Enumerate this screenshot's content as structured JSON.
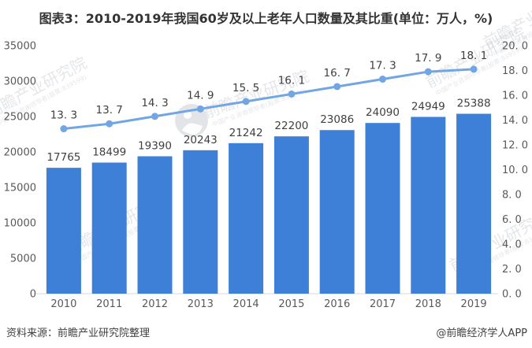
{
  "title": "图表3：2010-2019年我国60岁及以上老年人口数量及其比重(单位：万人，%)",
  "footer": {
    "source": "资料来源：前瞻产业研究院整理",
    "brand": "@前瞻经济学人APP"
  },
  "watermark": {
    "text": "前瞻产业研究院",
    "subtext": "中国产业咨询领导者(股票:839599)"
  },
  "colors": {
    "bar": "#3e80d8",
    "line": "#72a6e3",
    "marker": "#72a6e3",
    "axis_text": "#595959",
    "label_text": "#404040",
    "baseline": "#d9d9d9",
    "title_text": "#333333",
    "watermark": "#c5cad2"
  },
  "chart_data": {
    "type": "bar+line",
    "title": "图表3：2010-2019年我国60岁及以上老年人口数量及其比重(单位：万人，%)",
    "categories": [
      "2010",
      "2011",
      "2012",
      "2013",
      "2014",
      "2015",
      "2016",
      "2017",
      "2018",
      "2019"
    ],
    "bar_series": {
      "axis": "left",
      "unit": "万人",
      "values": [
        17765,
        18499,
        19390,
        20243,
        21242,
        22200,
        23086,
        24090,
        24949,
        25388
      ],
      "labels": [
        "17765",
        "18499",
        "19390",
        "20243",
        "21242",
        "22200",
        "23086",
        "24090",
        "24949",
        "25388"
      ]
    },
    "line_series": {
      "axis": "right",
      "unit": "%",
      "values": [
        13.3,
        13.7,
        14.3,
        14.9,
        15.5,
        16.1,
        16.7,
        17.3,
        17.9,
        18.1
      ],
      "labels": [
        "13. 3",
        "13. 7",
        "14. 3",
        "14. 9",
        "15. 5",
        "16. 1",
        "16. 7",
        "17. 3",
        "17. 9",
        "18. 1"
      ]
    },
    "left_axis": {
      "min": 0,
      "max": 35000,
      "step": 5000,
      "ticks": [
        "0",
        "5000",
        "10000",
        "15000",
        "20000",
        "25000",
        "30000",
        "35000"
      ]
    },
    "right_axis": {
      "min": 0,
      "max": 20,
      "step": 2,
      "ticks": [
        "0. 0",
        "2. 0",
        "4. 0",
        "6. 0",
        "8. 0",
        "10. 0",
        "12. 0",
        "14. 0",
        "16. 0",
        "18. 0",
        "20. 0"
      ]
    },
    "grid": false,
    "legend": "none"
  }
}
